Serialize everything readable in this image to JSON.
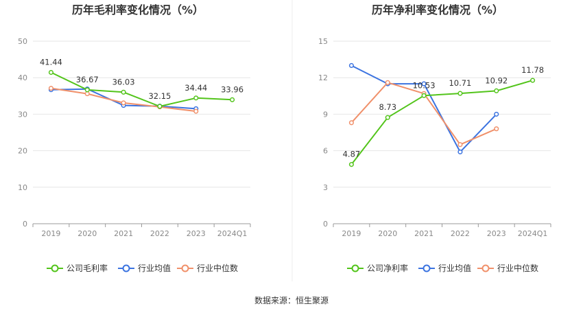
{
  "chart_data": [
    {
      "type": "line",
      "title": "历年毛利率变化情况（%）",
      "categories": [
        "2019",
        "2020",
        "2021",
        "2022",
        "2023",
        "2024Q1"
      ],
      "ylim": [
        0,
        50
      ],
      "yticks": [
        0,
        10,
        20,
        30,
        40,
        50
      ],
      "series": [
        {
          "name": "公司毛利率",
          "color": "#52c41a",
          "values": [
            41.44,
            36.67,
            36.03,
            32.15,
            34.44,
            33.96
          ],
          "labels": [
            "41.44",
            "36.67",
            "36.03",
            "32.15",
            "34.44",
            "33.96"
          ]
        },
        {
          "name": "行业均值",
          "color": "#3b73e0",
          "values": [
            36.7,
            36.9,
            32.4,
            32.2,
            31.5,
            null
          ]
        },
        {
          "name": "行业中位数",
          "color": "#f0906a",
          "values": [
            37.1,
            35.6,
            33.1,
            32.0,
            30.8,
            null
          ]
        }
      ]
    },
    {
      "type": "line",
      "title": "历年净利率变化情况（%）",
      "categories": [
        "2019",
        "2020",
        "2021",
        "2022",
        "2023",
        "2024Q1"
      ],
      "ylim": [
        0,
        15
      ],
      "yticks": [
        0,
        3,
        6,
        9,
        12,
        15
      ],
      "series": [
        {
          "name": "公司净利率",
          "color": "#52c41a",
          "values": [
            4.87,
            8.73,
            10.53,
            10.71,
            10.92,
            11.78
          ],
          "labels": [
            "4.87",
            "8.73",
            "10.53",
            "10.71",
            "10.92",
            "11.78"
          ]
        },
        {
          "name": "行业均值",
          "color": "#3b73e0",
          "values": [
            13.0,
            11.5,
            11.5,
            5.9,
            9.0,
            null
          ]
        },
        {
          "name": "行业中位数",
          "color": "#f0906a",
          "values": [
            8.3,
            11.6,
            10.7,
            6.5,
            7.8,
            null
          ]
        }
      ]
    }
  ],
  "source": "数据来源：恒生聚源"
}
